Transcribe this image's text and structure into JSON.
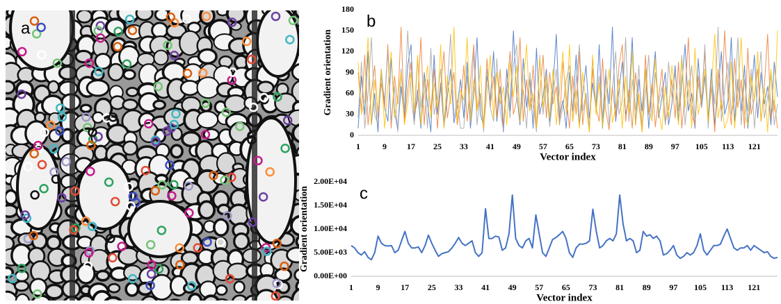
{
  "image_panel": {
    "label": "a"
  },
  "chart_data": [
    {
      "type": "line",
      "annotation": "b",
      "ylabel": "Gradient orientation",
      "xlabel": "Vector index",
      "xlim": [
        1,
        128
      ],
      "xticks": [
        1,
        9,
        17,
        25,
        33,
        41,
        49,
        57,
        65,
        73,
        81,
        89,
        97,
        105,
        113,
        121
      ],
      "ylim": [
        0,
        180
      ],
      "yticks": [
        0,
        30,
        60,
        90,
        120,
        150,
        180
      ],
      "grid": false,
      "x": [
        1,
        2,
        3,
        4,
        5,
        6,
        7,
        8,
        9,
        10,
        11,
        12,
        13,
        14,
        15,
        16,
        17,
        18,
        19,
        20,
        21,
        22,
        23,
        24,
        25,
        26,
        27,
        28,
        29,
        30,
        31,
        32,
        33,
        34,
        35,
        36,
        37,
        38,
        39,
        40,
        41,
        42,
        43,
        44,
        45,
        46,
        47,
        48,
        49,
        50,
        51,
        52,
        53,
        54,
        55,
        56,
        57,
        58,
        59,
        60,
        61,
        62,
        63,
        64,
        65,
        66,
        67,
        68,
        69,
        70,
        71,
        72,
        73,
        74,
        75,
        76,
        77,
        78,
        79,
        80,
        81,
        82,
        83,
        84,
        85,
        86,
        87,
        88,
        89,
        90,
        91,
        92,
        93,
        94,
        95,
        96,
        97,
        98,
        99,
        100,
        101,
        102,
        103,
        104,
        105,
        106,
        107,
        108,
        109,
        110,
        111,
        112,
        113,
        114,
        115,
        116,
        117,
        118,
        119,
        120,
        121,
        122,
        123,
        124,
        125,
        126,
        127,
        128
      ],
      "series": [
        {
          "color": "#4472c4",
          "values": [
            10,
            85,
            30,
            120,
            15,
            60,
            5,
            95,
            40,
            20,
            110,
            35,
            8,
            70,
            25,
            100,
            130,
            20,
            65,
            10,
            90,
            45,
            5,
            115,
            30,
            75,
            12,
            55,
            95,
            18,
            40,
            80,
            25,
            105,
            10,
            60,
            140,
            30,
            15,
            85,
            50,
            120,
            20,
            70,
            5,
            95,
            35,
            150,
            60,
            15,
            110,
            40,
            80,
            10,
            125,
            30,
            55,
            95,
            20,
            70,
            145,
            25,
            50,
            10,
            90,
            35,
            115,
            15,
            60,
            100,
            25,
            75,
            40,
            130,
            10,
            85,
            45,
            155,
            20,
            65,
            105,
            30,
            50,
            140,
            15,
            80,
            35,
            95,
            10,
            70,
            120,
            25,
            55,
            90,
            15,
            45,
            100,
            20,
            75,
            130,
            35,
            60,
            10,
            110,
            40,
            85,
            25,
            95,
            15,
            65,
            120,
            30,
            50,
            140,
            20,
            80,
            35,
            100,
            10,
            60,
            115,
            25,
            90,
            45,
            70,
            15,
            105,
            55
          ]
        },
        {
          "color": "#ed7d31",
          "values": [
            90,
            35,
            115,
            15,
            60,
            100,
            25,
            75,
            40,
            130,
            10,
            85,
            45,
            155,
            20,
            65,
            105,
            30,
            50,
            140,
            15,
            80,
            35,
            95,
            10,
            70,
            120,
            25,
            55,
            90,
            15,
            45,
            100,
            20,
            75,
            130,
            35,
            60,
            10,
            110,
            40,
            85,
            25,
            95,
            15,
            65,
            120,
            30,
            50,
            140,
            20,
            80,
            35,
            100,
            10,
            60,
            115,
            25,
            90,
            45,
            70,
            15,
            105,
            55,
            10,
            85,
            30,
            120,
            15,
            60,
            5,
            95,
            40,
            20,
            110,
            35,
            8,
            70,
            25,
            100,
            130,
            20,
            65,
            10,
            90,
            45,
            5,
            115,
            30,
            75,
            12,
            55,
            95,
            18,
            40,
            80,
            25,
            105,
            10,
            60,
            140,
            30,
            15,
            85,
            50,
            120,
            20,
            70,
            5,
            95,
            35,
            150,
            60,
            15,
            110,
            40,
            80,
            10,
            125,
            30,
            55,
            95,
            20,
            70,
            145,
            25,
            50,
            10
          ]
        },
        {
          "color": "#a5a5a5",
          "values": [
            25,
            105,
            10,
            60,
            140,
            30,
            15,
            85,
            50,
            120,
            20,
            70,
            5,
            95,
            35,
            150,
            60,
            15,
            110,
            40,
            80,
            10,
            125,
            30,
            55,
            95,
            20,
            70,
            145,
            25,
            50,
            10,
            10,
            85,
            30,
            120,
            15,
            60,
            5,
            95,
            40,
            20,
            110,
            35,
            8,
            70,
            25,
            100,
            130,
            20,
            65,
            10,
            90,
            45,
            5,
            115,
            30,
            75,
            12,
            55,
            95,
            18,
            40,
            80,
            100,
            20,
            75,
            130,
            35,
            60,
            10,
            110,
            40,
            85,
            25,
            95,
            15,
            65,
            120,
            30,
            50,
            140,
            20,
            80,
            35,
            100,
            10,
            60,
            115,
            25,
            90,
            45,
            70,
            15,
            105,
            55,
            90,
            35,
            115,
            15,
            60,
            100,
            25,
            75,
            40,
            130,
            10,
            85,
            45,
            155,
            20,
            65,
            105,
            30,
            50,
            140,
            15,
            80,
            35,
            95,
            10,
            70,
            120,
            25,
            55,
            90,
            15,
            45
          ]
        },
        {
          "color": "#ffc000",
          "values": [
            105,
            30,
            50,
            140,
            15,
            80,
            35,
            95,
            10,
            70,
            120,
            25,
            55,
            90,
            15,
            45,
            90,
            35,
            115,
            15,
            60,
            100,
            25,
            75,
            40,
            130,
            10,
            85,
            45,
            155,
            20,
            65,
            50,
            140,
            20,
            80,
            35,
            100,
            10,
            60,
            115,
            25,
            90,
            45,
            70,
            15,
            105,
            55,
            100,
            20,
            75,
            130,
            35,
            60,
            10,
            110,
            40,
            85,
            25,
            95,
            15,
            65,
            120,
            30,
            130,
            20,
            65,
            10,
            90,
            45,
            5,
            115,
            30,
            75,
            12,
            55,
            95,
            18,
            40,
            80,
            10,
            85,
            30,
            120,
            15,
            60,
            5,
            95,
            40,
            20,
            110,
            35,
            8,
            70,
            25,
            100,
            60,
            15,
            110,
            40,
            80,
            10,
            125,
            30,
            55,
            95,
            20,
            70,
            145,
            25,
            50,
            10,
            25,
            105,
            10,
            60,
            140,
            30,
            15,
            85,
            50,
            120,
            20,
            70,
            5,
            95,
            35,
            150
          ]
        }
      ]
    },
    {
      "type": "line",
      "annotation": "c",
      "ylabel": "Gradient orientation",
      "xlabel": "Vector index",
      "xlim": [
        1,
        128
      ],
      "xticks": [
        1,
        9,
        17,
        25,
        33,
        41,
        49,
        57,
        65,
        73,
        81,
        89,
        97,
        105,
        113,
        121
      ],
      "ylim": [
        0,
        20000
      ],
      "yticks": [
        {
          "value": 0,
          "label": "0.00E+00"
        },
        {
          "value": 5000,
          "label": "5.00E+03"
        },
        {
          "value": 10000,
          "label": "1.00E+04"
        },
        {
          "value": 15000,
          "label": "1.50E+04"
        },
        {
          "value": 20000,
          "label": "2.00E+04"
        }
      ],
      "grid": false,
      "x": [
        1,
        2,
        3,
        4,
        5,
        6,
        7,
        8,
        9,
        10,
        11,
        12,
        13,
        14,
        15,
        16,
        17,
        18,
        19,
        20,
        21,
        22,
        23,
        24,
        25,
        26,
        27,
        28,
        29,
        30,
        31,
        32,
        33,
        34,
        35,
        36,
        37,
        38,
        39,
        40,
        41,
        42,
        43,
        44,
        45,
        46,
        47,
        48,
        49,
        50,
        51,
        52,
        53,
        54,
        55,
        56,
        57,
        58,
        59,
        60,
        61,
        62,
        63,
        64,
        65,
        66,
        67,
        68,
        69,
        70,
        71,
        72,
        73,
        74,
        75,
        76,
        77,
        78,
        79,
        80,
        81,
        82,
        83,
        84,
        85,
        86,
        87,
        88,
        89,
        90,
        91,
        92,
        93,
        94,
        95,
        96,
        97,
        98,
        99,
        100,
        101,
        102,
        103,
        104,
        105,
        106,
        107,
        108,
        109,
        110,
        111,
        112,
        113,
        114,
        115,
        116,
        117,
        118,
        119,
        120,
        121,
        122,
        123,
        124,
        125,
        126,
        127,
        128
      ],
      "series": [
        {
          "color": "#4472c4",
          "values": [
            6500,
            6000,
            5000,
            4500,
            5200,
            4000,
            3500,
            5000,
            8500,
            7000,
            6500,
            6400,
            6500,
            5000,
            5500,
            7500,
            9500,
            7000,
            6000,
            6000,
            6200,
            5000,
            6500,
            8700,
            7000,
            5500,
            4200,
            4800,
            5000,
            5200,
            6000,
            7000,
            8200,
            7000,
            6500,
            7000,
            7500,
            5000,
            4200,
            5000,
            14300,
            8000,
            8000,
            8500,
            8300,
            5500,
            6000,
            9000,
            17200,
            8000,
            6500,
            6000,
            7500,
            8000,
            6000,
            13000,
            9000,
            5000,
            4200,
            6000,
            7800,
            8200,
            8800,
            9500,
            8000,
            5000,
            4000,
            6000,
            6800,
            6800,
            7000,
            7500,
            14200,
            9500,
            6000,
            6500,
            7500,
            8000,
            7500,
            9000,
            17200,
            11000,
            7500,
            8000,
            7500,
            5000,
            5500,
            9500,
            8500,
            8800,
            8000,
            8500,
            7500,
            4500,
            4800,
            5500,
            6500,
            4500,
            3800,
            4200,
            5000,
            4500,
            5000,
            6500,
            9000,
            5500,
            4500,
            5500,
            6500,
            6500,
            6800,
            8500,
            10000,
            8000,
            6000,
            5500,
            6000,
            6000,
            6500,
            5500,
            6500,
            6000,
            5500,
            5000,
            5200,
            4200,
            3800,
            4000
          ]
        }
      ]
    }
  ]
}
